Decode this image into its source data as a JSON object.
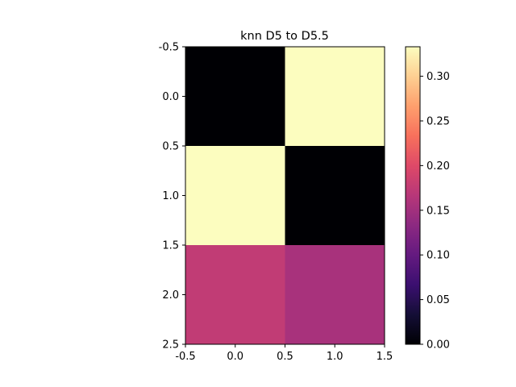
{
  "chart_data": {
    "type": "heatmap",
    "title": "knn D5 to D5.5",
    "xlabel": "",
    "ylabel": "",
    "rows": 3,
    "cols": 2,
    "values": [
      [
        0.0,
        0.333
      ],
      [
        0.333,
        0.0
      ],
      [
        0.175,
        0.155
      ]
    ],
    "xlim": [
      -0.5,
      1.5
    ],
    "ylim": [
      2.5,
      -0.5
    ],
    "x_ticks": [
      "-0.5",
      "0.0",
      "0.5",
      "1.0",
      "1.5"
    ],
    "x_tick_values": [
      -0.5,
      0.0,
      0.5,
      1.0,
      1.5
    ],
    "y_ticks": [
      "-0.5",
      "0.0",
      "0.5",
      "1.0",
      "1.5",
      "2.0",
      "2.5"
    ],
    "y_tick_values": [
      -0.5,
      0.0,
      0.5,
      1.0,
      1.5,
      2.0,
      2.5
    ],
    "colormap": "magma",
    "colorbar": {
      "min": 0.0,
      "max": 0.333,
      "ticks": [
        "0.00",
        "0.05",
        "0.10",
        "0.15",
        "0.20",
        "0.25",
        "0.30"
      ],
      "tick_values": [
        0.0,
        0.05,
        0.1,
        0.15,
        0.2,
        0.25,
        0.3
      ]
    },
    "grid": false
  }
}
